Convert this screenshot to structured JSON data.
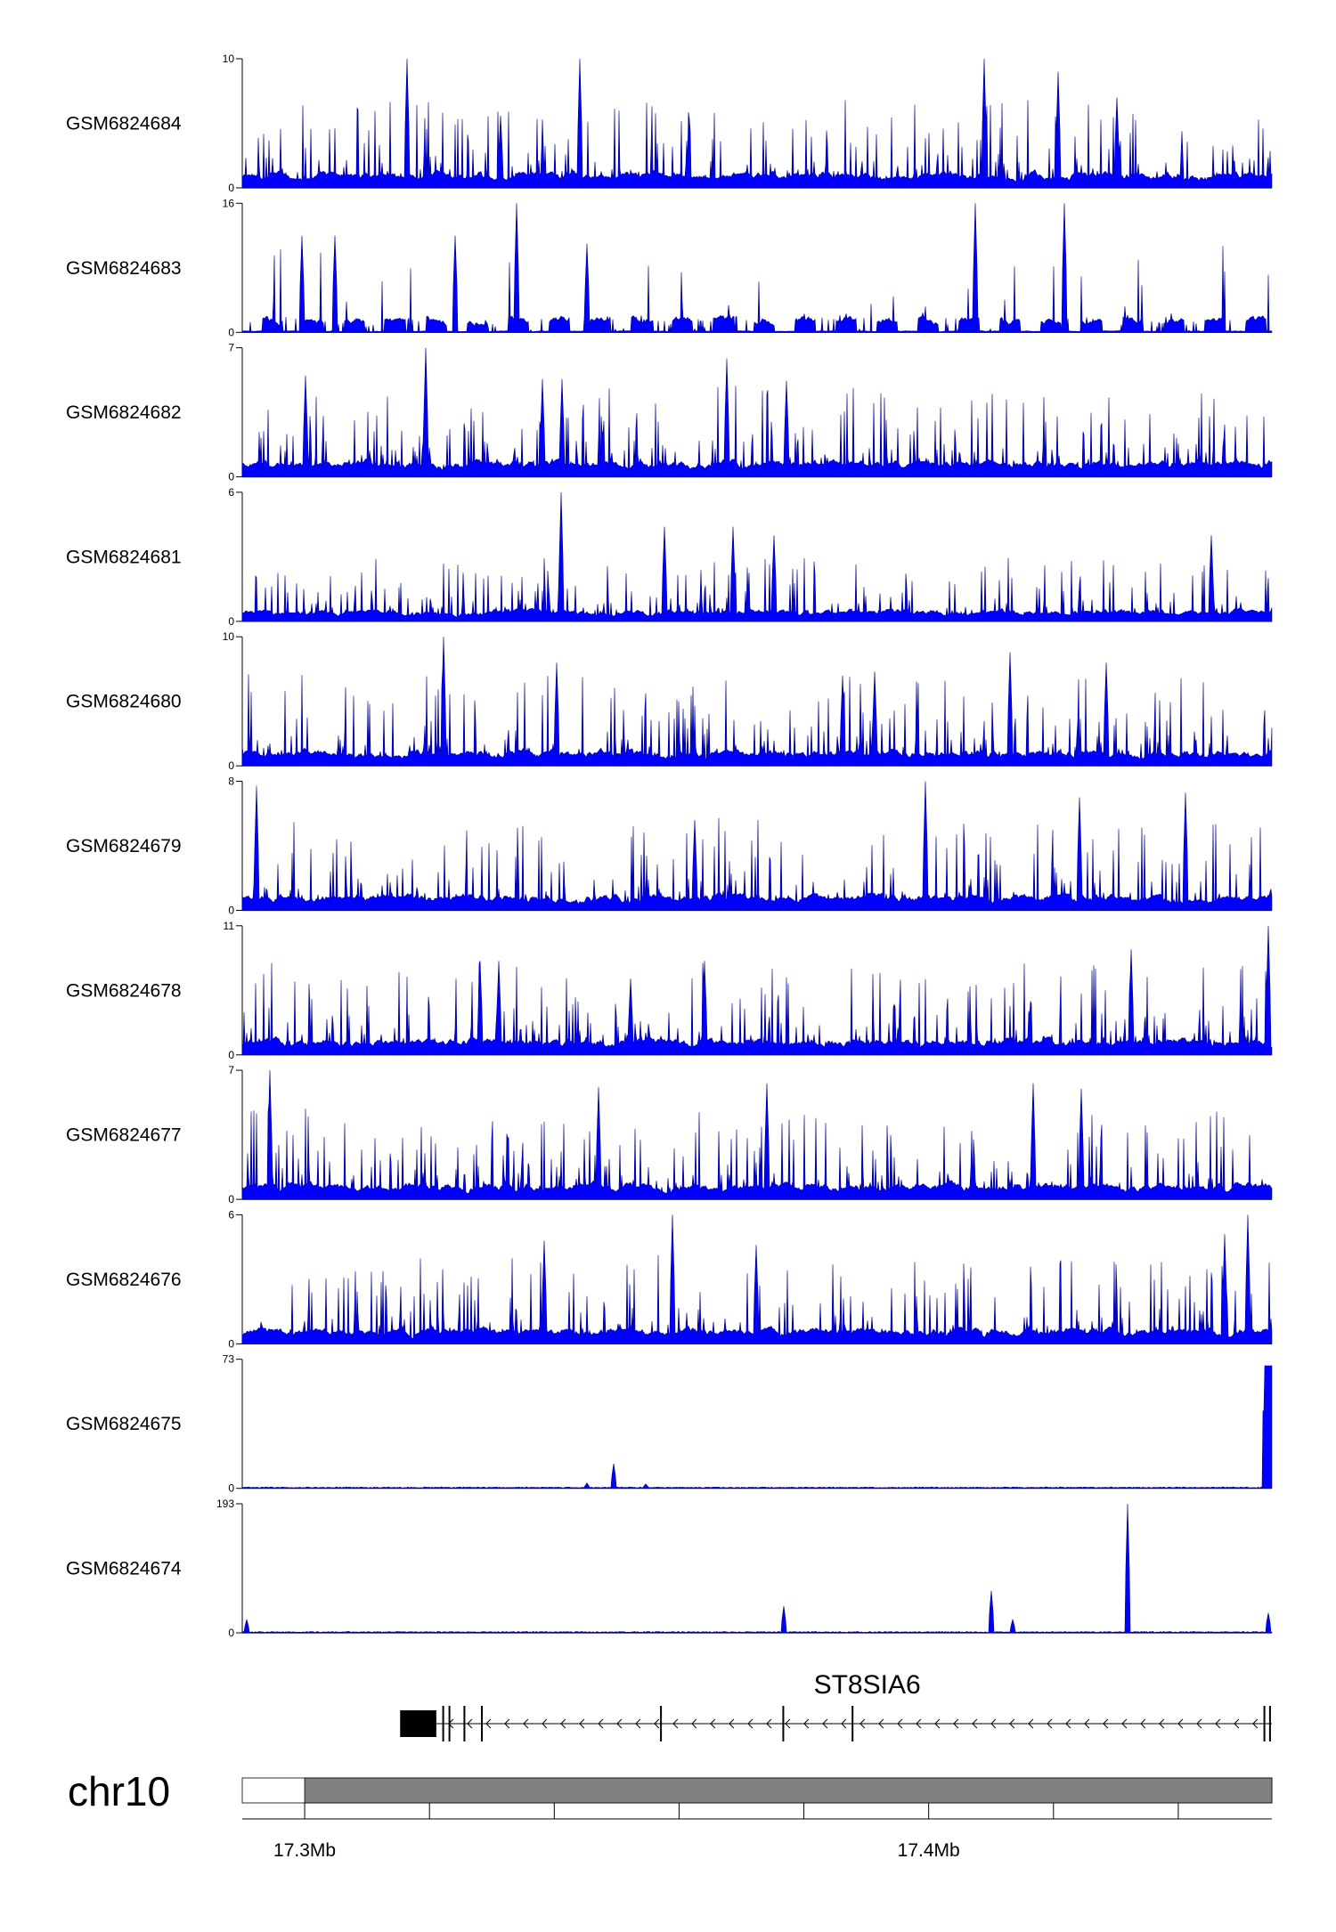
{
  "page": {
    "background": "#ffffff"
  },
  "chart_data": {
    "type": "area",
    "x_unit": "Mb",
    "xlim": [
      17.29,
      17.455
    ],
    "signal_color": "#0000ff",
    "signal_outline": "#00008b",
    "tracks": [
      {
        "name": "GSM6824684",
        "ymax": 10,
        "ymin": 0,
        "profile": "dense",
        "spikes": [
          [
            17.3164,
            10
          ],
          [
            17.3441,
            10
          ],
          [
            17.4089,
            10
          ],
          [
            17.4208,
            9
          ],
          [
            17.3314,
            5.6
          ],
          [
            17.4302,
            7
          ]
        ]
      },
      {
        "name": "GSM6824683",
        "ymax": 16,
        "ymin": 0,
        "profile": "sparse",
        "spikes": [
          [
            17.3339,
            16
          ],
          [
            17.4074,
            16
          ],
          [
            17.4218,
            16
          ],
          [
            17.2995,
            12
          ],
          [
            17.3049,
            12
          ],
          [
            17.3241,
            12
          ],
          [
            17.3452,
            11
          ]
        ]
      },
      {
        "name": "GSM6824682",
        "ymax": 7,
        "ymin": 0,
        "profile": "dense",
        "spikes": [
          [
            17.3194,
            7
          ],
          [
            17.3001,
            5.5
          ],
          [
            17.3676,
            6.4
          ],
          [
            17.3772,
            5.2
          ],
          [
            17.3381,
            5.3
          ],
          [
            17.3412,
            5.3
          ]
        ]
      },
      {
        "name": "GSM6824681",
        "ymax": 6,
        "ymin": 0,
        "profile": "low",
        "spikes": [
          [
            17.3411,
            6
          ],
          [
            17.3686,
            4.4
          ],
          [
            17.3752,
            4
          ],
          [
            17.3576,
            4.4
          ],
          [
            17.4453,
            4
          ]
        ]
      },
      {
        "name": "GSM6824680",
        "ymax": 10,
        "ymin": 0,
        "profile": "dense",
        "spikes": [
          [
            17.3223,
            10
          ],
          [
            17.3404,
            8
          ],
          [
            17.4131,
            8.8
          ],
          [
            17.4285,
            8
          ],
          [
            17.3913,
            7.3
          ],
          [
            17.3862,
            7
          ]
        ]
      },
      {
        "name": "GSM6824679",
        "ymax": 8,
        "ymin": 0,
        "profile": "dense",
        "spikes": [
          [
            17.3995,
            8
          ],
          [
            17.2923,
            7.7
          ],
          [
            17.4412,
            7.3
          ],
          [
            17.4241,
            7
          ],
          [
            17.3625,
            5.6
          ]
        ]
      },
      {
        "name": "GSM6824678",
        "ymax": 11,
        "ymin": 0,
        "profile": "dense",
        "spikes": [
          [
            17.4544,
            11
          ],
          [
            17.4325,
            9
          ],
          [
            17.3281,
            8
          ],
          [
            17.3311,
            8
          ],
          [
            17.3641,
            8
          ],
          [
            17.3523,
            6.5
          ]
        ]
      },
      {
        "name": "GSM6824677",
        "ymax": 7,
        "ymin": 0,
        "profile": "dense",
        "spikes": [
          [
            17.2944,
            7
          ],
          [
            17.4168,
            6.3
          ],
          [
            17.3741,
            6.3
          ],
          [
            17.3471,
            6.1
          ],
          [
            17.4244,
            6
          ]
        ]
      },
      {
        "name": "GSM6824676",
        "ymax": 6,
        "ymin": 0,
        "profile": "dense",
        "spikes": [
          [
            17.3589,
            6
          ],
          [
            17.4511,
            6
          ],
          [
            17.3384,
            4.8
          ],
          [
            17.3723,
            4.6
          ],
          [
            17.4475,
            5.1
          ]
        ]
      },
      {
        "name": "GSM6824675",
        "ymax": 73,
        "ymin": 0,
        "profile": "flat",
        "spikes": [
          [
            17.3495,
            14
          ],
          [
            17.3452,
            3
          ],
          [
            17.3547,
            2.5
          ]
        ],
        "block": [
          17.4535,
          17.455,
          73
        ]
      },
      {
        "name": "GSM6824674",
        "ymax": 193,
        "ymin": 0,
        "profile": "flat",
        "spikes": [
          [
            17.4319,
            193
          ],
          [
            17.4101,
            63
          ],
          [
            17.3768,
            40
          ],
          [
            17.4135,
            20
          ],
          [
            17.4545,
            30
          ],
          [
            17.2907,
            20
          ]
        ]
      }
    ],
    "gene": {
      "name": "ST8SIA6",
      "strand": "-",
      "start": 17.3153,
      "end": 17.455,
      "thick_block": [
        17.3153,
        17.3211
      ],
      "exons": [
        17.3222,
        17.3232,
        17.3256,
        17.3284,
        17.3571,
        17.3767,
        17.3878,
        17.4538,
        17.4547
      ]
    },
    "chromosome": {
      "name": "chr10",
      "ideogram_start": 17.3,
      "ideogram_color": "#808080",
      "ticks": [
        17.3,
        17.32,
        17.34,
        17.36,
        17.38,
        17.4,
        17.42,
        17.44
      ],
      "labeled_ticks": [
        {
          "value": 17.3,
          "label": "17.3Mb"
        },
        {
          "value": 17.4,
          "label": "17.4Mb"
        }
      ]
    }
  }
}
